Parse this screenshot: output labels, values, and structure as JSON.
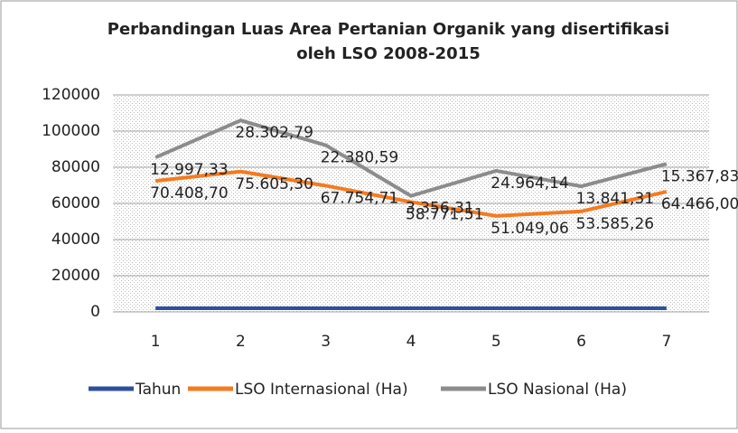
{
  "chart_data": {
    "type": "stacked-line",
    "title": [
      "Perbandingan Luas Area Pertanian Organik yang disertifikasi",
      "oleh LSO 2008-2015"
    ],
    "categories": [
      "1",
      "2",
      "3",
      "4",
      "5",
      "6",
      "7"
    ],
    "series": [
      {
        "name": "Tahun",
        "color": "#2e4ea0",
        "values": [
          2008,
          2009,
          2010,
          2011,
          2012,
          2013,
          2014
        ]
      },
      {
        "name": "LSO Internasional (Ha)",
        "color": "#f47b20",
        "values": [
          70408.7,
          75605.3,
          67754.71,
          58771.51,
          51049.06,
          53585.26,
          64466.0
        ],
        "value_labels": [
          "70.408,70",
          "75.605,30",
          "67.754,71",
          "58.771,51",
          "51.049,06",
          "53.585,26",
          "64.466,00"
        ]
      },
      {
        "name": "LSO Nasional (Ha)",
        "color": "#8c8c8c",
        "values": [
          12997.33,
          28302.79,
          22380.59,
          3356.31,
          24964.14,
          13841.31,
          15367.83
        ],
        "value_labels": [
          "12.997,33",
          "28.302,79",
          "22.380,59",
          "3.356,31",
          "24.964,14",
          "13.841,31",
          "15.367,83"
        ]
      }
    ],
    "ylim": [
      0,
      120000
    ],
    "yticks": [
      0,
      20000,
      40000,
      60000,
      80000,
      100000,
      120000
    ],
    "grid": true,
    "legend": "bottom"
  }
}
